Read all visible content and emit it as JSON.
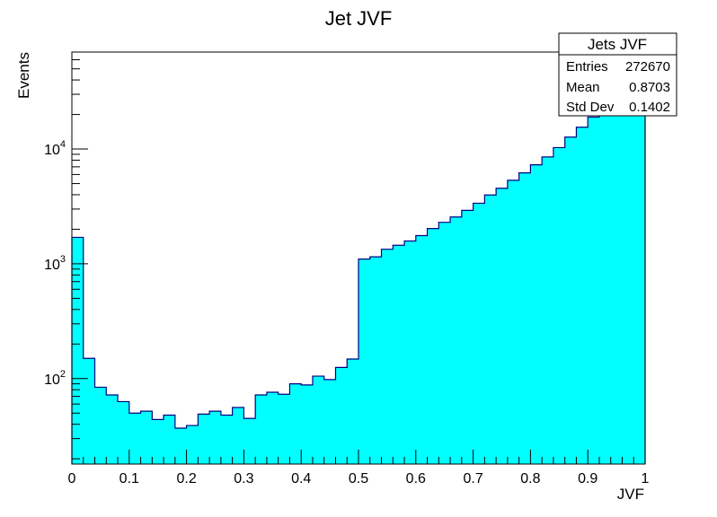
{
  "chart_data": {
    "type": "bar",
    "title": "Jet JVF",
    "xlabel": "JVF",
    "ylabel": "Events",
    "xlim": [
      0,
      1
    ],
    "ylim": [
      18,
      70000
    ],
    "yscale": "log",
    "grid": false,
    "bin_width": 0.02,
    "x_ticks": [
      "0",
      "0.1",
      "0.2",
      "0.3",
      "0.4",
      "0.5",
      "0.6",
      "0.7",
      "0.8",
      "0.9",
      "1"
    ],
    "y_ticks": [
      {
        "base": "10",
        "exp": "2",
        "value": 100
      },
      {
        "base": "10",
        "exp": "3",
        "value": 1000
      },
      {
        "base": "10",
        "exp": "4",
        "value": 10000
      }
    ],
    "values": [
      1700,
      150,
      84,
      72,
      63,
      50,
      52,
      44,
      48,
      37,
      39,
      49,
      52,
      48,
      56,
      45,
      72,
      76,
      73,
      90,
      88,
      105,
      98,
      125,
      148,
      1100,
      1150,
      1340,
      1450,
      1580,
      1760,
      2030,
      2300,
      2560,
      2920,
      3370,
      3980,
      4550,
      5340,
      6200,
      7290,
      8530,
      10300,
      12700,
      15500,
      19000,
      24500,
      31000,
      40000,
      56000
    ],
    "fill_color": "#00ffff",
    "line_color": "#000080",
    "stats": {
      "title": "Jets JVF",
      "rows": [
        {
          "label": "Entries",
          "value": "272670"
        },
        {
          "label": "Mean",
          "value": "0.8703"
        },
        {
          "label": "Std Dev",
          "value": "0.1402"
        }
      ]
    }
  }
}
